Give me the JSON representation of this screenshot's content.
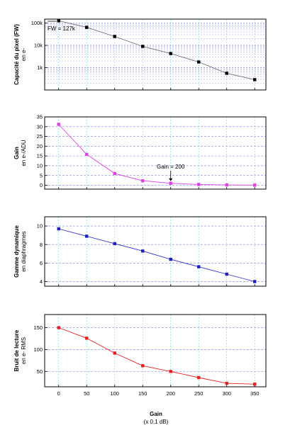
{
  "chart_data": [
    {
      "type": "line",
      "ylabel": "Capacité du pixel (FW)",
      "ylabel_unit": "en e-",
      "yscale": "log",
      "ylim": [
        100,
        150000
      ],
      "yticks": [
        1000,
        10000,
        100000
      ],
      "ytick_labels": [
        "1k",
        "10k",
        "100k"
      ],
      "color": "#6e6e6e",
      "marker_color": "#000000",
      "x": [
        0,
        50,
        100,
        150,
        200,
        250,
        300,
        350
      ],
      "values": [
        127000,
        64000,
        25000,
        9000,
        4300,
        1800,
        560,
        290
      ],
      "annotation": "FW = 127k"
    },
    {
      "type": "line",
      "ylabel": "Gain",
      "ylabel_unit": "en e-/ADU",
      "ylim": [
        -2,
        35
      ],
      "yticks": [
        0,
        5,
        10,
        15,
        20,
        25,
        30,
        35
      ],
      "ytick_labels": [
        "0",
        "5",
        "10",
        "15",
        "20",
        "25",
        "30",
        "35"
      ],
      "color": "#e040e0",
      "marker_color": "#e040e0",
      "x": [
        0,
        50,
        100,
        150,
        200,
        250,
        300,
        350
      ],
      "values": [
        31.2,
        15.8,
        6.0,
        2.3,
        1.0,
        0.4,
        0.15,
        0.05
      ],
      "annotation": "Gain = 200"
    },
    {
      "type": "line",
      "ylabel": "Gamme dynamique",
      "ylabel_unit": "en diaphragmes",
      "ylim": [
        3.5,
        11
      ],
      "yticks": [
        4,
        6,
        8,
        10
      ],
      "ytick_labels": [
        "4",
        "6",
        "8",
        "10"
      ],
      "color": "#3030d0",
      "marker_color": "#2020c0",
      "x": [
        0,
        50,
        100,
        150,
        200,
        250,
        300,
        350
      ],
      "values": [
        9.7,
        8.9,
        8.1,
        7.3,
        6.4,
        5.6,
        4.8,
        4.0
      ],
      "annotation": ""
    },
    {
      "type": "line",
      "ylabel": "Bruit de lecture",
      "ylabel_unit": "en e- RMS",
      "ylim": [
        15,
        180
      ],
      "yticks": [
        50,
        100,
        150
      ],
      "ytick_labels": [
        "50",
        "100",
        "150"
      ],
      "color": "#e82020",
      "marker_color": "#e82020",
      "x": [
        0,
        50,
        100,
        150,
        200,
        250,
        300,
        350
      ],
      "values": [
        150,
        126,
        92,
        63,
        50,
        36,
        23,
        21
      ],
      "annotation": ""
    }
  ],
  "xaxis": {
    "label": "Gain",
    "unit": "(x 0,1 dB)",
    "xlim": [
      -25,
      370
    ],
    "ticks": [
      0,
      50,
      100,
      150,
      200,
      250,
      300,
      350
    ],
    "tick_labels": [
      "0",
      "50",
      "100",
      "150",
      "200",
      "250",
      "300",
      "350"
    ]
  },
  "colors": {
    "grid_x": "#66dddd",
    "grid_y": "#8080e0"
  }
}
